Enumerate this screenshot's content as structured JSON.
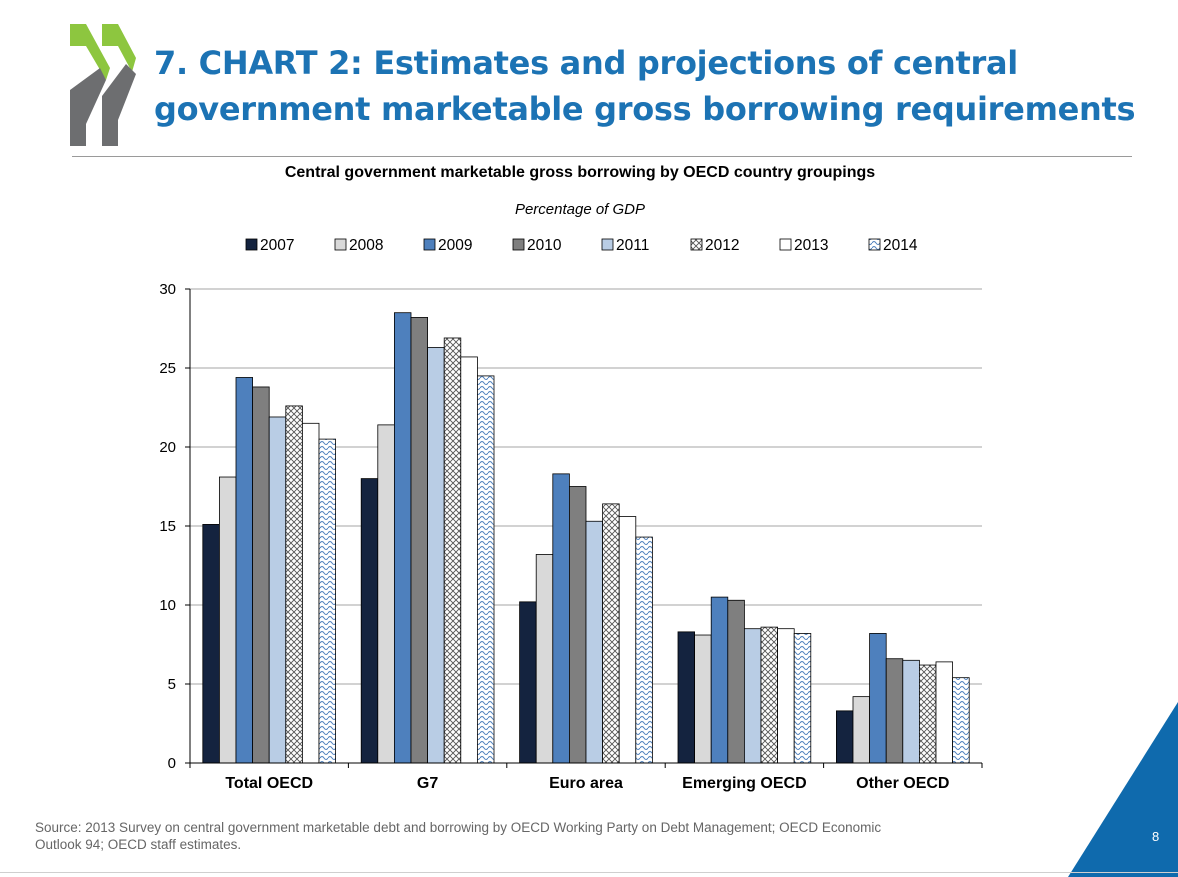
{
  "slide": {
    "title_line1": "7. CHART 2: Estimates and projections of central",
    "title_line2": "government marketable gross borrowing requirements",
    "source_line1": "Source: 2013 Survey on central government marketable debt and borrowing by OECD Working Party on Debt Management;  OECD Economic",
    "source_line2": "Outlook 94; OECD staff estimates.",
    "page_number": "8"
  },
  "colors": {
    "title": "#1c73b4",
    "logo_green": "#8dc63f",
    "logo_gray": "#6d6e70",
    "corner": "#0f6aad"
  },
  "chart_data": {
    "type": "bar",
    "title": "Central government marketable gross borrowing by OECD country groupings",
    "subtitle": "Percentage of GDP",
    "xlabel": "",
    "ylabel": "",
    "categories": [
      "Total OECD",
      "G7",
      "Euro area",
      "Emerging  OECD",
      "Other  OECD"
    ],
    "ylim": [
      0,
      30
    ],
    "yticks": [
      0,
      5,
      10,
      15,
      20,
      25,
      30
    ],
    "grid": true,
    "legend_position": "top",
    "series": [
      {
        "name": "2007",
        "color": "#14233f",
        "pattern": "solid",
        "values": [
          15.1,
          18.0,
          10.2,
          8.3,
          3.3
        ]
      },
      {
        "name": "2008",
        "color": "#d9d9d9",
        "pattern": "solid",
        "values": [
          18.1,
          21.4,
          13.2,
          8.1,
          4.2
        ]
      },
      {
        "name": "2009",
        "color": "#4e80bd",
        "pattern": "solid",
        "values": [
          24.4,
          28.5,
          18.3,
          10.5,
          8.2
        ]
      },
      {
        "name": "2010",
        "color": "#7f7f7f",
        "pattern": "solid",
        "values": [
          23.8,
          28.2,
          17.5,
          10.3,
          6.6
        ]
      },
      {
        "name": "2011",
        "color": "#b9cde5",
        "pattern": "solid",
        "values": [
          21.9,
          26.3,
          15.3,
          8.5,
          6.5
        ]
      },
      {
        "name": "2012",
        "color": "#ffffff",
        "pattern": "crosshatch",
        "values": [
          22.6,
          26.9,
          16.4,
          8.6,
          6.2
        ]
      },
      {
        "name": "2013",
        "color": "#ffffff",
        "pattern": "solid",
        "values": [
          21.5,
          25.7,
          15.6,
          8.5,
          6.4
        ]
      },
      {
        "name": "2014",
        "color": "#ffffff",
        "pattern": "wave",
        "values": [
          20.5,
          24.5,
          14.3,
          8.2,
          5.4
        ]
      }
    ]
  }
}
